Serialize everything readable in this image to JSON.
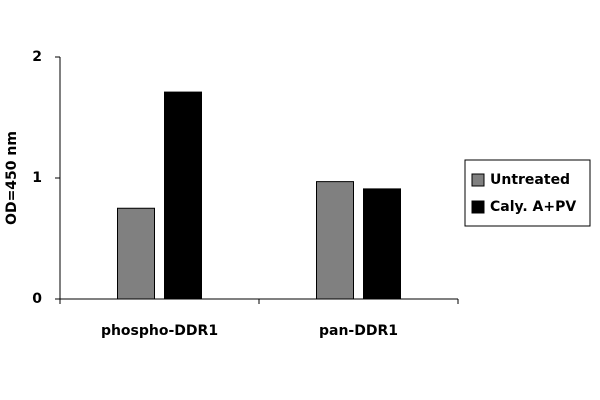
{
  "chart_data": {
    "type": "bar",
    "y_label": "OD=450 nm",
    "categories": [
      "phospho-DDR1",
      "pan-DDR1"
    ],
    "series": [
      {
        "name": "Untreated",
        "color": "#808080",
        "values": [
          0.75,
          0.97
        ]
      },
      {
        "name": "Caly. A+PV",
        "color": "#000000",
        "values": [
          1.71,
          0.91
        ]
      }
    ],
    "ylim": [
      0,
      2
    ],
    "yticks": [
      0,
      1,
      2
    ],
    "grid": false,
    "legend": "right"
  }
}
